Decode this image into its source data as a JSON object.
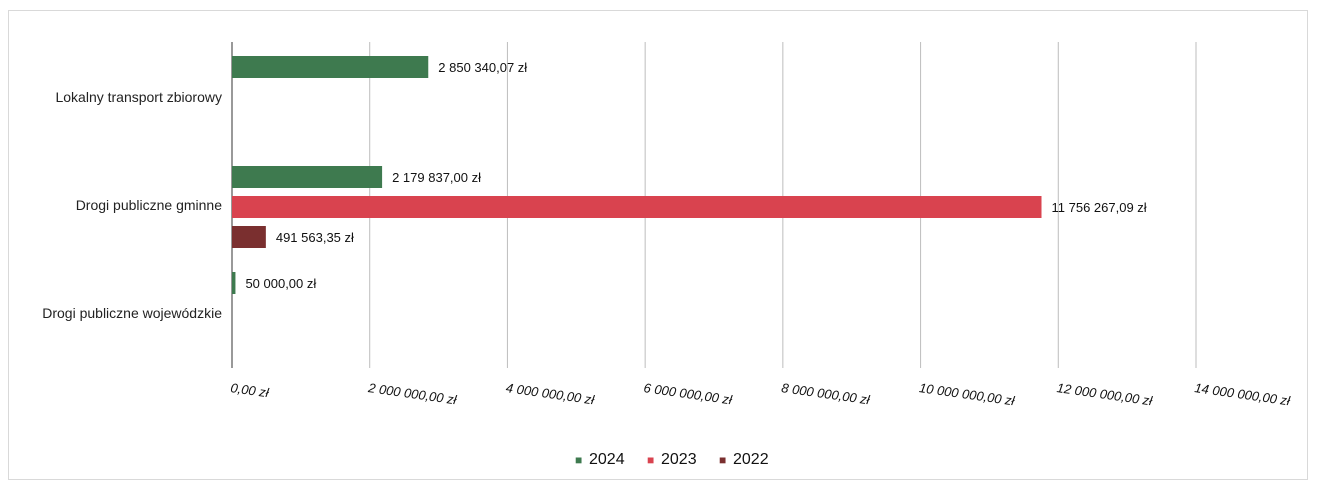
{
  "chart_data": {
    "type": "bar",
    "orientation": "horizontal",
    "title": "",
    "categories": [
      "Lokalny transport zbiorowy",
      "Drogi publiczne gminne",
      "Drogi publiczne wojewódzkie"
    ],
    "series": [
      {
        "name": "2024",
        "color": "#3e7a4f",
        "values": [
          2850340.07,
          2179837.0,
          50000.0
        ],
        "labels": [
          "2 850 340,07 zł",
          "2 179 837,00 zł",
          "50 000,00 zł"
        ]
      },
      {
        "name": "2023",
        "color": "#d9434f",
        "values": [
          null,
          11756267.09,
          null
        ],
        "labels": [
          "",
          "11 756 267,09 zł",
          ""
        ]
      },
      {
        "name": "2022",
        "color": "#7a2f2f",
        "values": [
          null,
          491563.35,
          null
        ],
        "labels": [
          "",
          "491 563,35 zł",
          ""
        ]
      }
    ],
    "xlim": [
      0,
      14000000
    ],
    "ticks": [
      0,
      2000000,
      4000000,
      6000000,
      8000000,
      10000000,
      12000000,
      14000000
    ],
    "tick_labels": [
      "0,00 zł",
      "2 000 000,00 zł",
      "4 000 000,00 zł",
      "6 000 000,00 zł",
      "8 000 000,00 zł",
      "10 000 000,00 zł",
      "12 000 000,00 zł",
      "14 000 000,00 zł"
    ],
    "grid": true,
    "legend": {
      "placement": "bottom",
      "entries": [
        {
          "marker": "■",
          "label": "2024",
          "color": "#3e7a4f"
        },
        {
          "marker": "■",
          "label": "2023",
          "color": "#d9434f"
        },
        {
          "marker": "■",
          "label": "2022",
          "color": "#7a2f2f"
        }
      ]
    }
  }
}
